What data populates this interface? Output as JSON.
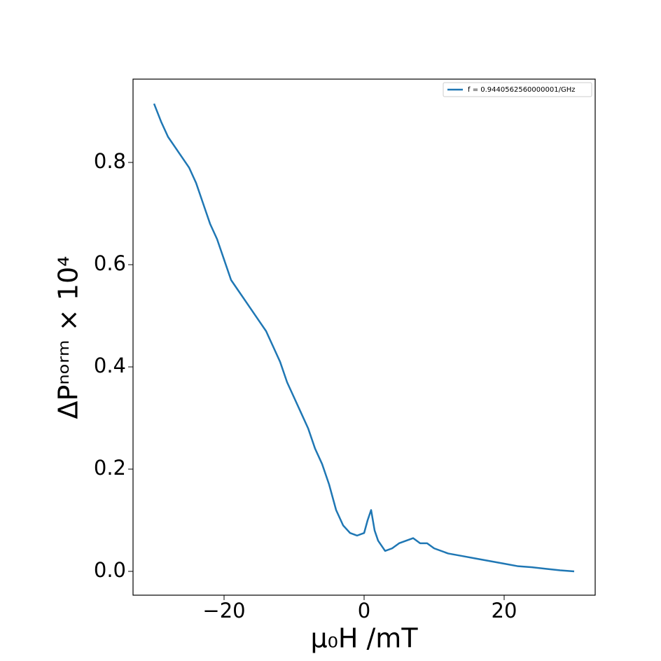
{
  "chart_data": {
    "type": "line",
    "xlabel": "μ₀H /mT",
    "ylabel": "ΔPⁿᵒʳᵐ × 10⁴",
    "x": [
      -30,
      -29,
      -28,
      -27,
      -26,
      -25,
      -24,
      -23,
      -22,
      -21,
      -20,
      -19,
      -18,
      -17,
      -16,
      -15,
      -14,
      -13,
      -12,
      -11,
      -10,
      -9,
      -8,
      -7,
      -6,
      -5,
      -4,
      -3,
      -2,
      -1,
      0,
      0.5,
      1,
      1.5,
      2,
      3,
      4,
      5,
      6,
      7,
      8,
      9,
      10,
      12,
      14,
      16,
      18,
      20,
      22,
      24,
      26,
      28,
      30
    ],
    "series": [
      {
        "name": "f = 0.9440562560000001/GHz",
        "color": "#1f77b4",
        "values": [
          0.915,
          0.88,
          0.85,
          0.83,
          0.81,
          0.79,
          0.76,
          0.72,
          0.68,
          0.65,
          0.61,
          0.57,
          0.55,
          0.53,
          0.51,
          0.49,
          0.47,
          0.44,
          0.41,
          0.37,
          0.34,
          0.31,
          0.28,
          0.24,
          0.21,
          0.17,
          0.12,
          0.09,
          0.075,
          0.07,
          0.075,
          0.1,
          0.12,
          0.08,
          0.06,
          0.04,
          0.045,
          0.055,
          0.06,
          0.065,
          0.055,
          0.055,
          0.045,
          0.035,
          0.03,
          0.025,
          0.02,
          0.015,
          0.01,
          0.008,
          0.005,
          0.002,
          0.0
        ]
      }
    ],
    "xlim": [
      -33,
      33
    ],
    "ylim": [
      -0.0466,
      0.963
    ],
    "xticks": [
      {
        "value": -20,
        "label": "−20"
      },
      0,
      20
    ],
    "yticks": [
      {
        "value": 0,
        "label": "0.0"
      },
      0.2,
      0.4,
      0.6,
      0.8
    ],
    "legend": "upper right"
  }
}
